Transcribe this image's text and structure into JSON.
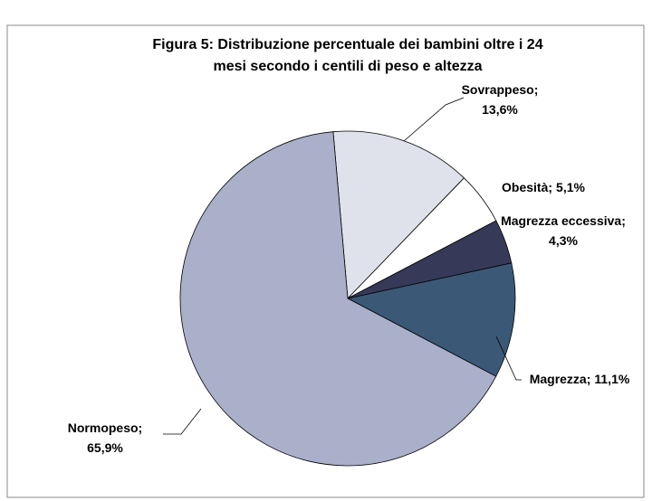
{
  "chart_data": {
    "type": "pie",
    "title": [
      "Figura 5: Distribuzione percentuale dei bambini oltre i 24",
      "mesi secondo i centili di peso e altezza"
    ],
    "categories": [
      "Sovrappeso;",
      "Obesità;",
      "Magrezza eccessiva;",
      "Magrezza;",
      "Normopeso;"
    ],
    "values": [
      13.6,
      5.1,
      4.3,
      11.1,
      65.9
    ],
    "value_labels": [
      "13,6%",
      "5,1%",
      "4,3%",
      "11,1%",
      "65,9%"
    ],
    "colors": [
      "#dfe2eb",
      "#ffffff",
      "#363a58",
      "#3b5876",
      "#aaafca"
    ]
  }
}
